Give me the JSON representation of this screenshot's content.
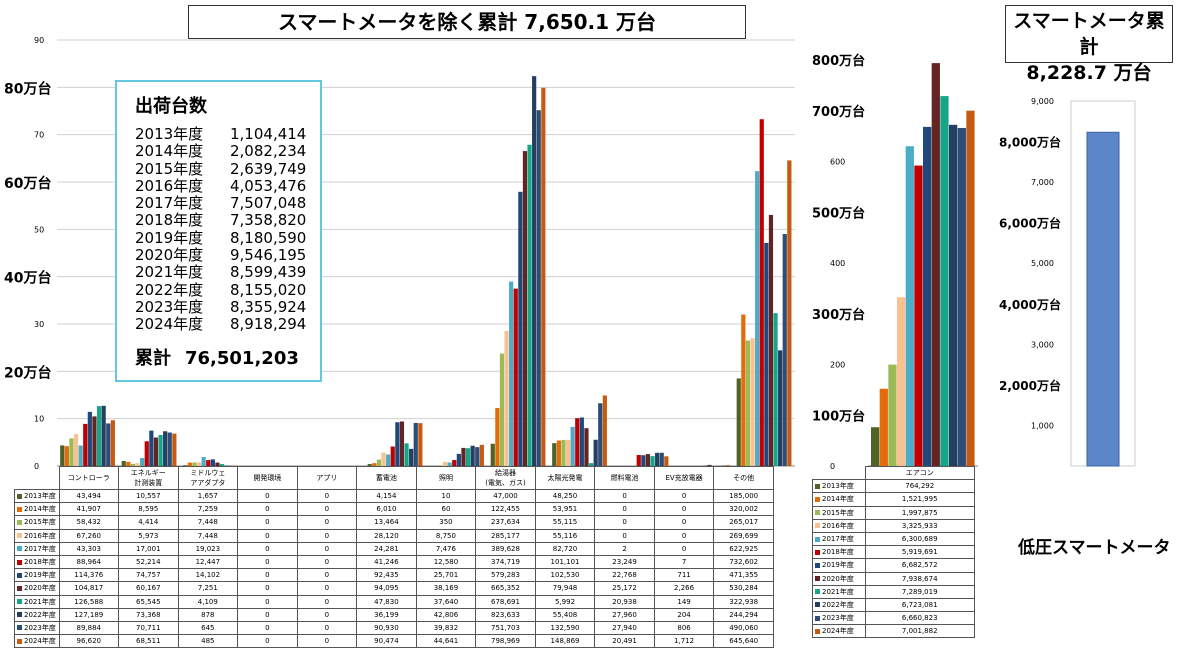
{
  "titles": {
    "main": "スマートメータを除く累計 7,650.1 万台",
    "smart_line1": "スマートメータ累計",
    "smart_line2": "8,228.7 万台"
  },
  "legend_box": {
    "title": "出荷台数",
    "rows": [
      {
        "year": "2013年度",
        "value": "1,104,414"
      },
      {
        "year": "2014年度",
        "value": "2,082,234"
      },
      {
        "year": "2015年度",
        "value": "2,639,749"
      },
      {
        "year": "2016年度",
        "value": "4,053,476"
      },
      {
        "year": "2017年度",
        "value": "7,507,048"
      },
      {
        "year": "2018年度",
        "value": "7,358,820"
      },
      {
        "year": "2019年度",
        "value": "8,180,590"
      },
      {
        "year": "2020年度",
        "value": "9,546,195"
      },
      {
        "year": "2021年度",
        "value": "8,599,439"
      },
      {
        "year": "2022年度",
        "value": "8,155,020"
      },
      {
        "year": "2023年度",
        "value": "8,355,924"
      },
      {
        "year": "2024年度",
        "value": "8,918,294"
      }
    ],
    "total_label": "累計",
    "total_value": "76,501,203"
  },
  "series_colors": [
    "#4f6228",
    "#e36c09",
    "#9bbb59",
    "#fac090",
    "#4bacc6",
    "#c00000",
    "#1f497d",
    "#632523",
    "#17a589",
    "#243f60",
    "#2c4d75",
    "#c55a11"
  ],
  "chart_data": [
    {
      "type": "bar",
      "categories": [
        "コントローラ",
        "エネルギー計測装置",
        "ミドルウェアアダプタ",
        "開発環境",
        "アプリ",
        "蓄電池",
        "照明",
        "給湯器(電気、ガス)",
        "太陽光発電",
        "燃料電池",
        "EV充放電器",
        "その他"
      ],
      "category_labels": [
        [
          "コントローラ"
        ],
        [
          "エネルギー",
          "計測装置"
        ],
        [
          "ミドルウェ",
          "アアダプタ"
        ],
        [
          "開発環境"
        ],
        [
          "アプリ"
        ],
        [
          "蓄電池"
        ],
        [
          "照明"
        ],
        [
          "給湯器",
          "(電気、ガス)"
        ],
        [
          "太陽光発電"
        ],
        [
          "燃料電池"
        ],
        [
          "EV充放電器"
        ],
        [
          "その他"
        ]
      ],
      "yticks": [
        "0",
        "10",
        "20万台",
        "30",
        "40万台",
        "50",
        "60万台",
        "70",
        "80万台",
        "90"
      ],
      "ylim": [
        0,
        900000
      ],
      "series": [
        {
          "name": "2013年度",
          "values": [
            43494,
            10557,
            1657,
            0,
            0,
            4154,
            10,
            47000,
            48250,
            0,
            0,
            185000
          ]
        },
        {
          "name": "2014年度",
          "values": [
            41907,
            8595,
            7259,
            0,
            0,
            6010,
            60,
            122455,
            53951,
            0,
            0,
            320002
          ]
        },
        {
          "name": "2015年度",
          "values": [
            58432,
            4414,
            7448,
            0,
            0,
            13464,
            350,
            237634,
            55115,
            0,
            0,
            265017
          ]
        },
        {
          "name": "2016年度",
          "values": [
            67260,
            5973,
            7448,
            0,
            0,
            28120,
            8750,
            285177,
            55116,
            0,
            0,
            269699
          ]
        },
        {
          "name": "2017年度",
          "values": [
            43303,
            17001,
            19023,
            0,
            0,
            24281,
            7476,
            389628,
            82720,
            2,
            0,
            622925
          ]
        },
        {
          "name": "2018年度",
          "values": [
            88964,
            52214,
            12447,
            0,
            0,
            41246,
            12580,
            374719,
            101101,
            23249,
            7,
            732602
          ]
        },
        {
          "name": "2019年度",
          "values": [
            114376,
            74757,
            14102,
            0,
            0,
            92435,
            25701,
            579283,
            102530,
            22768,
            711,
            471355
          ]
        },
        {
          "name": "2020年度",
          "values": [
            104817,
            60167,
            7251,
            0,
            0,
            94095,
            38169,
            665352,
            79948,
            25172,
            2266,
            530284
          ]
        },
        {
          "name": "2021年度",
          "values": [
            126588,
            65545,
            4109,
            0,
            0,
            47830,
            37640,
            678691,
            5992,
            20938,
            149,
            322938
          ]
        },
        {
          "name": "2022年度",
          "values": [
            127189,
            73368,
            878,
            0,
            0,
            36199,
            42806,
            823633,
            55408,
            27960,
            204,
            244294
          ]
        },
        {
          "name": "2023年度",
          "values": [
            89884,
            70711,
            645,
            0,
            0,
            90930,
            39832,
            751703,
            132590,
            27940,
            806,
            490060
          ]
        },
        {
          "name": "2024年度",
          "values": [
            96620,
            68511,
            485,
            0,
            0,
            90474,
            44641,
            798969,
            148869,
            20491,
            1712,
            645640
          ]
        }
      ],
      "table": [
        [
          "43,494",
          "10,557",
          "1,657",
          "0",
          "0",
          "4,154",
          "10",
          "47,000",
          "48,250",
          "0",
          "0",
          "185,000"
        ],
        [
          "41,907",
          "8,595",
          "7,259",
          "0",
          "0",
          "6,010",
          "60",
          "122,455",
          "53,951",
          "0",
          "0",
          "320,002"
        ],
        [
          "58,432",
          "4,414",
          "7,448",
          "0",
          "0",
          "13,464",
          "350",
          "237,634",
          "55,115",
          "0",
          "0",
          "265,017"
        ],
        [
          "67,260",
          "5,973",
          "7,448",
          "0",
          "0",
          "28,120",
          "8,750",
          "285,177",
          "55,116",
          "0",
          "0",
          "269,699"
        ],
        [
          "43,303",
          "17,001",
          "19,023",
          "0",
          "0",
          "24,281",
          "7,476",
          "389,628",
          "82,720",
          "2",
          "0",
          "622,925"
        ],
        [
          "88,964",
          "52,214",
          "12,447",
          "0",
          "0",
          "41,246",
          "12,580",
          "374,719",
          "101,101",
          "23,249",
          "7",
          "732,602"
        ],
        [
          "114,376",
          "74,757",
          "14,102",
          "0",
          "0",
          "92,435",
          "25,701",
          "579,283",
          "102,530",
          "22,768",
          "711",
          "471,355"
        ],
        [
          "104,817",
          "60,167",
          "7,251",
          "0",
          "0",
          "94,095",
          "38,169",
          "665,352",
          "79,948",
          "25,172",
          "2,266",
          "530,284"
        ],
        [
          "126,588",
          "65,545",
          "4,109",
          "0",
          "0",
          "47,830",
          "37,640",
          "678,691",
          "5,992",
          "20,938",
          "149",
          "322,938"
        ],
        [
          "127,189",
          "73,368",
          "878",
          "0",
          "0",
          "36,199",
          "42,806",
          "823,633",
          "55,408",
          "27,960",
          "204",
          "244,294"
        ],
        [
          "89,884",
          "70,711",
          "645",
          "0",
          "0",
          "90,930",
          "39,832",
          "751,703",
          "132,590",
          "27,940",
          "806",
          "490,060"
        ],
        [
          "96,620",
          "68,511",
          "485",
          "0",
          "0",
          "90,474",
          "44,641",
          "798,969",
          "148,869",
          "20,491",
          "1,712",
          "645,640"
        ]
      ]
    },
    {
      "type": "bar",
      "categories": [
        "エアコン"
      ],
      "yticks": [
        "0",
        "100万台",
        "200",
        "300万台",
        "400",
        "500万台",
        "600",
        "700万台",
        "800万台"
      ],
      "ylim": [
        0,
        8000000
      ],
      "series_values": [
        764292,
        1521995,
        1997875,
        3325933,
        6300689,
        5919691,
        6682572,
        7938674,
        7289019,
        6723081,
        6660823,
        7001882
      ],
      "table": [
        "764,292",
        "1,521,995",
        "1,997,875",
        "3,325,933",
        "6,300,689",
        "5,919,691",
        "6,682,572",
        "7,938,674",
        "7,289,019",
        "6,723,081",
        "6,660,823",
        "7,001,882"
      ]
    },
    {
      "type": "bar",
      "categories": [
        "低圧スマートメータ"
      ],
      "yticks": [
        "0",
        "1,000",
        "2,000万台",
        "3,000",
        "4,000万台",
        "5,000",
        "6,000万台",
        "7,000",
        "8,000万台",
        "9,000"
      ],
      "ylim": [
        0,
        90000000
      ],
      "values": [
        82287000
      ],
      "caption": "低圧スマートメータ"
    }
  ]
}
